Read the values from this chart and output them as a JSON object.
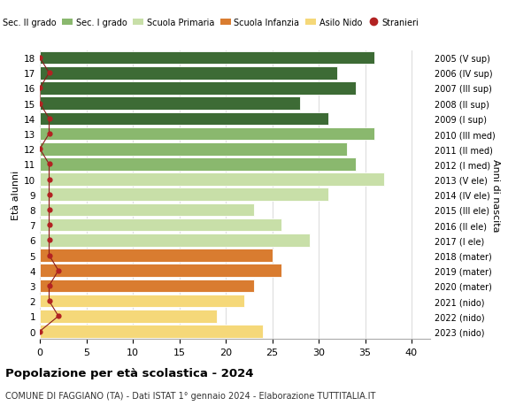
{
  "ages": [
    0,
    1,
    2,
    3,
    4,
    5,
    6,
    7,
    8,
    9,
    10,
    11,
    12,
    13,
    14,
    15,
    16,
    17,
    18
  ],
  "years": [
    "2023 (nido)",
    "2022 (nido)",
    "2021 (nido)",
    "2020 (mater)",
    "2019 (mater)",
    "2018 (mater)",
    "2017 (I ele)",
    "2016 (II ele)",
    "2015 (III ele)",
    "2014 (IV ele)",
    "2013 (V ele)",
    "2012 (I med)",
    "2011 (II med)",
    "2010 (III med)",
    "2009 (I sup)",
    "2008 (II sup)",
    "2007 (III sup)",
    "2006 (IV sup)",
    "2005 (V sup)"
  ],
  "values": [
    24,
    19,
    22,
    23,
    26,
    25,
    29,
    26,
    23,
    31,
    37,
    34,
    33,
    36,
    31,
    28,
    34,
    32,
    36
  ],
  "stranieri": [
    0,
    2,
    1,
    1,
    2,
    1,
    1,
    1,
    1,
    1,
    1,
    1,
    0,
    1,
    1,
    0,
    0,
    1,
    0
  ],
  "bar_colors": [
    "#f5d879",
    "#f5d879",
    "#f5d879",
    "#d97c30",
    "#d97c30",
    "#d97c30",
    "#c8dfa8",
    "#c8dfa8",
    "#c8dfa8",
    "#c8dfa8",
    "#c8dfa8",
    "#8ab86e",
    "#8ab86e",
    "#8ab86e",
    "#3d6b35",
    "#3d6b35",
    "#3d6b35",
    "#3d6b35",
    "#3d6b35"
  ],
  "legend_colors": [
    "#3d6b35",
    "#8ab86e",
    "#c8dfa8",
    "#d97c30",
    "#f5d879",
    "#b22222"
  ],
  "legend_labels": [
    "Sec. II grado",
    "Sec. I grado",
    "Scuola Primaria",
    "Scuola Infanzia",
    "Asilo Nido",
    "Stranieri"
  ],
  "ylabel_left": "Età alunni",
  "ylabel_right": "Anni di nascita",
  "title_bold": "Popolazione per età scolastica - 2024",
  "subtitle": "COMUNE DI FAGGIANO (TA) - Dati ISTAT 1° gennaio 2024 - Elaborazione TUTTITALIA.IT",
  "xlim": [
    0,
    42
  ],
  "bg_color": "#ffffff",
  "grid_color": "#dddddd"
}
